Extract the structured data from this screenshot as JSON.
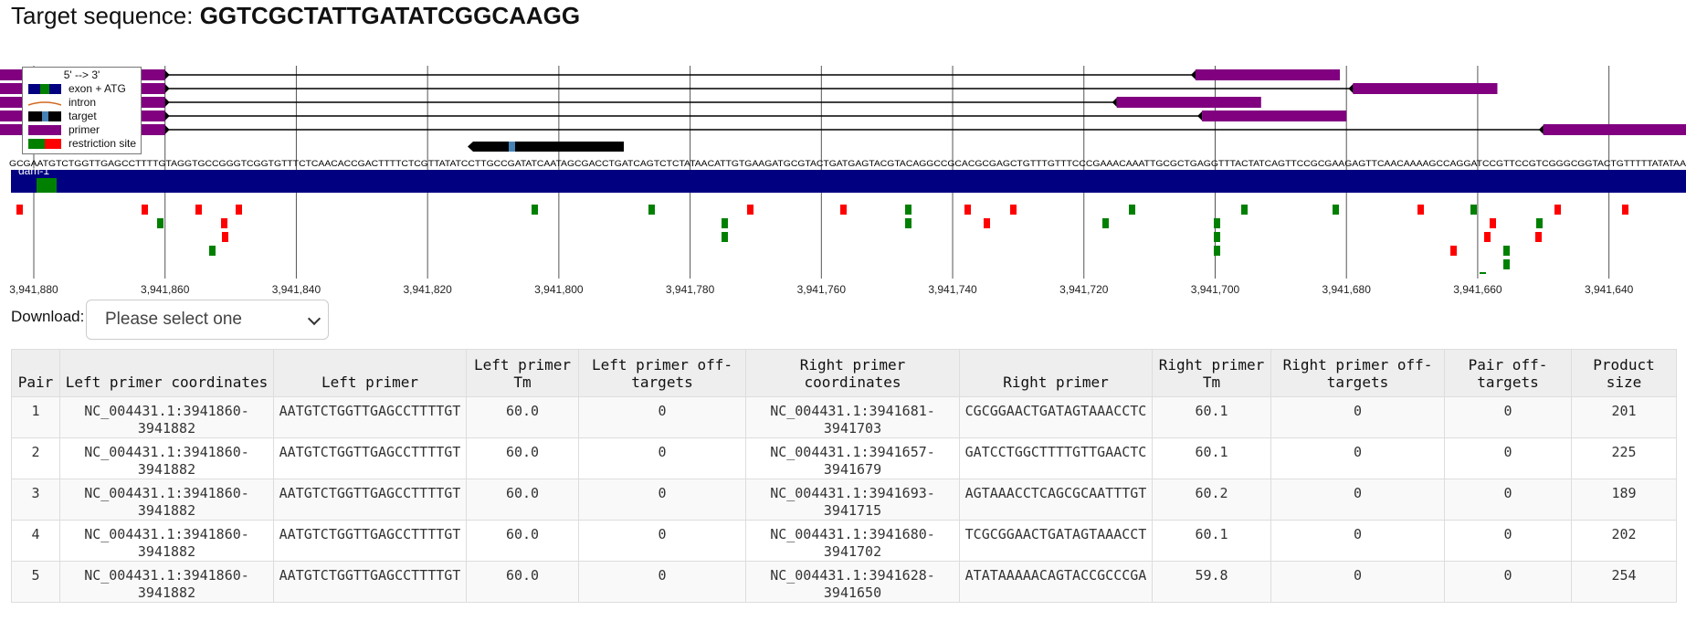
{
  "header": {
    "label": "Target sequence:",
    "sequence": "GGTCGCTATTGATATCGGCAAGG"
  },
  "legend": {
    "title": "5' --> 3'",
    "items": [
      {
        "label": "exon + ATG",
        "icon": "exon-atg-swatch"
      },
      {
        "label": "intron",
        "icon": "intron-line"
      },
      {
        "label": "target",
        "icon": "target-swatch"
      },
      {
        "label": "primer",
        "icon": "primer-swatch"
      },
      {
        "label": "restriction site",
        "icon": "restriction-swatch"
      }
    ]
  },
  "colors": {
    "exon": "#000080",
    "primer": "#800080",
    "target": "#000000",
    "target_pam": "#4682b4",
    "restriction_red": "#ff0000",
    "restriction_green": "#008000",
    "gridline": "#555555"
  },
  "sequence_track": {
    "text": "GCGAATGTCTGGTTGAGCCTTTTGTAGGTGCCGGGTCGGTGTTTCTCAACACCGACTTTTCTCGTTATATCCTTGCCGATATCAATAGCGACCTGATCAGTCTCTATAACATTGTGAAGATGCGTACTGATGAGTACGTACAGGCCGCACGCGAGCTGTTTGTTTCCCGAAACAAATTGCGCTGAGGTTTACTATCAGTTCCGCGAAGAGTTCAACAAAAGCCAGGATCCGTTCCGTCGGGCGGTACTGTTTTTATATAA",
    "exon_label": "dam-1"
  },
  "axis": {
    "ticks": [
      "3,941,880",
      "3,941,860",
      "3,941,840",
      "3,941,820",
      "3,941,800",
      "3,941,780",
      "3,941,760",
      "3,941,740",
      "3,941,720",
      "3,941,700",
      "3,941,680",
      "3,941,660",
      "3,941,640"
    ]
  },
  "download": {
    "label": "Download:",
    "placeholder": "Please select one"
  },
  "table": {
    "headers": [
      "Pair",
      "Left primer coordinates",
      "Left primer",
      "Left primer Tm",
      "Left primer off-targets",
      "Right primer coordinates",
      "Right primer",
      "Right primer Tm",
      "Right primer off-targets",
      "Pair off-targets",
      "Product size"
    ],
    "rows": [
      [
        "1",
        "NC_004431.1:3941860-3941882",
        "AATGTCTGGTTGAGCCTTTTGT",
        "60.0",
        "0",
        "NC_004431.1:3941681-3941703",
        "CGCGGAACTGATAGTAAACCTC",
        "60.1",
        "0",
        "0",
        "201"
      ],
      [
        "2",
        "NC_004431.1:3941860-3941882",
        "AATGTCTGGTTGAGCCTTTTGT",
        "60.0",
        "0",
        "NC_004431.1:3941657-3941679",
        "GATCCTGGCTTTTGTTGAACTC",
        "60.1",
        "0",
        "0",
        "225"
      ],
      [
        "3",
        "NC_004431.1:3941860-3941882",
        "AATGTCTGGTTGAGCCTTTTGT",
        "60.0",
        "0",
        "NC_004431.1:3941693-3941715",
        "AGTAAACCTCAGCGCAATTTGT",
        "60.2",
        "0",
        "0",
        "189"
      ],
      [
        "4",
        "NC_004431.1:3941860-3941882",
        "AATGTCTGGTTGAGCCTTTTGT",
        "60.0",
        "0",
        "NC_004431.1:3941680-3941702",
        "TCGCGGAACTGATAGTAAACCT",
        "60.1",
        "0",
        "0",
        "202"
      ],
      [
        "5",
        "NC_004431.1:3941860-3941882",
        "AATGTCTGGTTGAGCCTTTTGT",
        "60.0",
        "0",
        "NC_004431.1:3941628-3941650",
        "ATATAAAAACAGTACCGCCCGA",
        "59.8",
        "0",
        "0",
        "254"
      ]
    ]
  }
}
